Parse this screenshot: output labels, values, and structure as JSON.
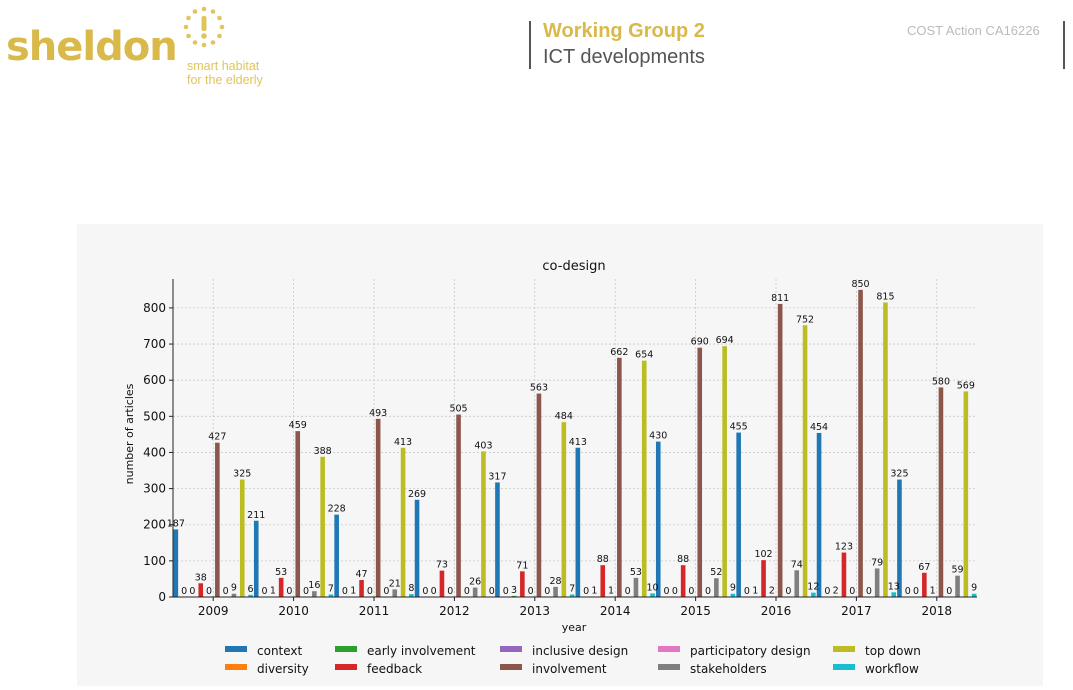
{
  "header": {
    "logo_text": "sheldon",
    "logo_tagline_1": "smart habitat",
    "logo_tagline_2": "for the elderly",
    "wg_title": "Working Group 2",
    "wg_subtitle": "ICT developments",
    "cost_action": "COST Action CA16226"
  },
  "colors": {
    "brand": "#d9b94a",
    "context": "#1f77b4",
    "diversity": "#ff7f0e",
    "early involvement": "#2ca02c",
    "feedback": "#d62728",
    "inclusive design": "#9467bd",
    "involvement": "#8c564b",
    "participatory design": "#e377c2",
    "stakeholders": "#7f7f7f",
    "top down": "#bcbd22",
    "workflow": "#17becf"
  },
  "chart_data": {
    "type": "bar",
    "title": "co-design",
    "xlabel": "year",
    "ylabel": "number of articles",
    "ylim": [
      0,
      880
    ],
    "yticks": [
      0,
      100,
      200,
      300,
      400,
      500,
      600,
      700,
      800
    ],
    "grid": true,
    "legend_position": "bottom",
    "categories": [
      "2009",
      "2010",
      "2011",
      "2012",
      "2013",
      "2014",
      "2015",
      "2016",
      "2017",
      "2018"
    ],
    "series": [
      {
        "name": "context",
        "values": [
          187,
          211,
          228,
          269,
          317,
          413,
          430,
          455,
          454,
          325
        ]
      },
      {
        "name": "diversity",
        "values": [
          0,
          0,
          0,
          0,
          0,
          0,
          0,
          0,
          0,
          0
        ]
      },
      {
        "name": "early involvement",
        "values": [
          0,
          1,
          1,
          0,
          3,
          1,
          0,
          1,
          2,
          0
        ]
      },
      {
        "name": "feedback",
        "values": [
          38,
          53,
          47,
          73,
          71,
          88,
          88,
          102,
          123,
          67
        ]
      },
      {
        "name": "inclusive design",
        "values": [
          0,
          0,
          0,
          0,
          0,
          1,
          0,
          2,
          0,
          1
        ]
      },
      {
        "name": "involvement",
        "values": [
          427,
          459,
          493,
          505,
          563,
          662,
          690,
          811,
          850,
          580
        ]
      },
      {
        "name": "participatory design",
        "values": [
          0,
          0,
          0,
          0,
          0,
          0,
          0,
          0,
          0,
          0
        ]
      },
      {
        "name": "stakeholders",
        "values": [
          9,
          16,
          21,
          26,
          28,
          53,
          52,
          74,
          79,
          59
        ]
      },
      {
        "name": "top down",
        "values": [
          325,
          388,
          413,
          403,
          484,
          654,
          694,
          752,
          815,
          569
        ]
      },
      {
        "name": "workflow",
        "values": [
          6,
          7,
          8,
          0,
          7,
          10,
          9,
          12,
          13,
          9
        ]
      }
    ]
  }
}
